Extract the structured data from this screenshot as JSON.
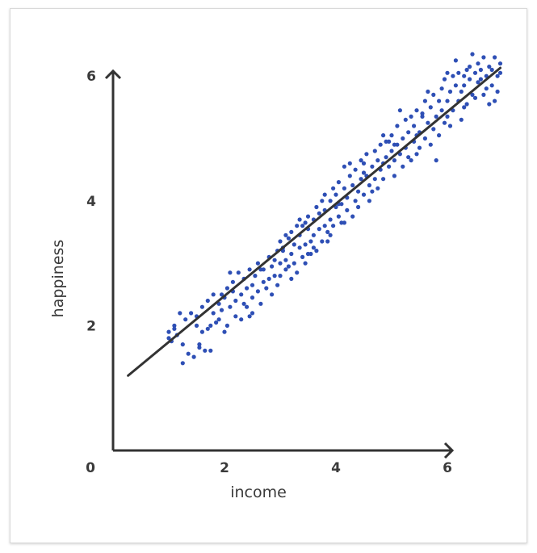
{
  "chart_data": {
    "type": "scatter",
    "title": "",
    "xlabel": "income",
    "ylabel": "happiness",
    "xlim": [
      0,
      7.3
    ],
    "ylim": [
      0,
      6.4
    ],
    "origin_label": "0",
    "x_ticks": [
      {
        "value": 2,
        "label": "2"
      },
      {
        "value": 4,
        "label": "4"
      },
      {
        "value": 6,
        "label": "6"
      }
    ],
    "y_ticks": [
      {
        "value": 2,
        "label": "2"
      },
      {
        "value": 4,
        "label": "4"
      },
      {
        "value": 6,
        "label": "6"
      }
    ],
    "grid": false,
    "trend_line": {
      "x": [
        0.27,
        6.95
      ],
      "y": [
        1.2,
        6.13
      ]
    },
    "point_color": "#2e4fb5",
    "line_color": "#333333",
    "axis_color": "#333333",
    "points": [
      [
        1.0,
        1.8
      ],
      [
        1.0,
        1.9
      ],
      [
        1.05,
        1.75
      ],
      [
        1.1,
        2.0
      ],
      [
        1.1,
        1.95
      ],
      [
        1.2,
        2.2
      ],
      [
        1.25,
        1.4
      ],
      [
        1.3,
        2.1
      ],
      [
        1.35,
        1.55
      ],
      [
        1.4,
        2.2
      ],
      [
        1.45,
        1.5
      ],
      [
        1.5,
        2.0
      ],
      [
        1.55,
        1.7
      ],
      [
        1.55,
        1.65
      ],
      [
        1.6,
        2.3
      ],
      [
        1.6,
        1.9
      ],
      [
        1.65,
        1.6
      ],
      [
        1.7,
        2.4
      ],
      [
        1.7,
        1.95
      ],
      [
        1.75,
        1.6
      ],
      [
        1.8,
        2.5
      ],
      [
        1.8,
        2.2
      ],
      [
        1.85,
        2.05
      ],
      [
        1.9,
        2.1
      ],
      [
        1.95,
        2.5
      ],
      [
        1.95,
        2.25
      ],
      [
        2.0,
        2.45
      ],
      [
        2.0,
        1.9
      ],
      [
        2.05,
        2.6
      ],
      [
        2.05,
        2.0
      ],
      [
        2.1,
        2.3
      ],
      [
        2.15,
        2.7
      ],
      [
        2.2,
        2.15
      ],
      [
        2.2,
        2.4
      ],
      [
        2.25,
        2.85
      ],
      [
        2.3,
        2.5
      ],
      [
        2.3,
        2.1
      ],
      [
        2.35,
        2.75
      ],
      [
        2.4,
        2.3
      ],
      [
        2.4,
        2.6
      ],
      [
        2.45,
        2.9
      ],
      [
        2.5,
        2.45
      ],
      [
        2.5,
        2.2
      ],
      [
        2.55,
        2.8
      ],
      [
        2.6,
        2.55
      ],
      [
        2.6,
        3.0
      ],
      [
        2.65,
        2.35
      ],
      [
        2.7,
        2.7
      ],
      [
        2.7,
        2.9
      ],
      [
        2.75,
        2.6
      ],
      [
        2.8,
        3.1
      ],
      [
        2.8,
        2.75
      ],
      [
        2.85,
        2.5
      ],
      [
        2.9,
        3.05
      ],
      [
        2.9,
        2.8
      ],
      [
        2.95,
        3.2
      ],
      [
        2.95,
        2.65
      ],
      [
        3.0,
        3.0
      ],
      [
        3.0,
        2.8
      ],
      [
        3.05,
        3.2
      ],
      [
        3.05,
        3.25
      ],
      [
        3.1,
        2.9
      ],
      [
        3.1,
        3.05
      ],
      [
        3.15,
        3.4
      ],
      [
        3.15,
        2.95
      ],
      [
        3.2,
        3.15
      ],
      [
        3.2,
        3.5
      ],
      [
        3.25,
        3.0
      ],
      [
        3.25,
        3.3
      ],
      [
        3.3,
        3.6
      ],
      [
        3.3,
        2.85
      ],
      [
        3.35,
        3.25
      ],
      [
        3.35,
        3.45
      ],
      [
        3.4,
        3.1
      ],
      [
        3.4,
        3.6
      ],
      [
        3.45,
        3.3
      ],
      [
        3.45,
        3.0
      ],
      [
        3.5,
        3.55
      ],
      [
        3.5,
        3.75
      ],
      [
        3.55,
        3.35
      ],
      [
        3.55,
        3.15
      ],
      [
        3.6,
        3.7
      ],
      [
        3.6,
        3.45
      ],
      [
        3.65,
        3.9
      ],
      [
        3.65,
        3.2
      ],
      [
        3.7,
        3.55
      ],
      [
        3.7,
        3.8
      ],
      [
        3.75,
        3.35
      ],
      [
        3.75,
        4.0
      ],
      [
        3.8,
        3.6
      ],
      [
        3.8,
        3.85
      ],
      [
        3.85,
        3.5
      ],
      [
        3.85,
        3.35
      ],
      [
        3.9,
        4.0
      ],
      [
        3.9,
        3.7
      ],
      [
        3.95,
        4.2
      ],
      [
        3.95,
        3.6
      ],
      [
        4.0,
        3.9
      ],
      [
        4.0,
        4.1
      ],
      [
        4.05,
        3.75
      ],
      [
        4.05,
        4.3
      ],
      [
        4.1,
        3.95
      ],
      [
        4.1,
        3.65
      ],
      [
        4.15,
        4.55
      ],
      [
        4.15,
        4.2
      ],
      [
        4.2,
        3.85
      ],
      [
        4.2,
        4.05
      ],
      [
        4.25,
        4.4
      ],
      [
        4.3,
        3.75
      ],
      [
        4.3,
        4.25
      ],
      [
        4.35,
        4.0
      ],
      [
        4.35,
        4.5
      ],
      [
        4.4,
        4.15
      ],
      [
        4.4,
        3.9
      ],
      [
        4.45,
        4.35
      ],
      [
        4.5,
        4.6
      ],
      [
        4.5,
        4.1
      ],
      [
        4.55,
        4.4
      ],
      [
        4.55,
        4.75
      ],
      [
        4.6,
        4.25
      ],
      [
        4.6,
        4.0
      ],
      [
        4.65,
        4.55
      ],
      [
        4.7,
        4.8
      ],
      [
        4.7,
        4.35
      ],
      [
        4.75,
        4.65
      ],
      [
        4.75,
        4.2
      ],
      [
        4.8,
        4.9
      ],
      [
        4.8,
        4.5
      ],
      [
        4.85,
        5.05
      ],
      [
        4.85,
        4.35
      ],
      [
        4.9,
        4.7
      ],
      [
        4.95,
        4.95
      ],
      [
        4.95,
        4.55
      ],
      [
        5.0,
        4.8
      ],
      [
        5.0,
        5.05
      ],
      [
        5.05,
        4.4
      ],
      [
        5.05,
        4.65
      ],
      [
        5.1,
        4.9
      ],
      [
        5.1,
        5.2
      ],
      [
        5.15,
        4.75
      ],
      [
        5.2,
        5.0
      ],
      [
        5.2,
        4.55
      ],
      [
        5.25,
        5.3
      ],
      [
        5.25,
        4.85
      ],
      [
        5.3,
        5.1
      ],
      [
        5.3,
        4.7
      ],
      [
        5.35,
        5.35
      ],
      [
        5.4,
        4.95
      ],
      [
        5.4,
        5.2
      ],
      [
        5.45,
        4.75
      ],
      [
        5.45,
        5.45
      ],
      [
        5.5,
        5.1
      ],
      [
        5.5,
        4.85
      ],
      [
        5.55,
        5.35
      ],
      [
        5.6,
        5.0
      ],
      [
        5.6,
        5.6
      ],
      [
        5.65,
        5.25
      ],
      [
        5.7,
        4.9
      ],
      [
        5.7,
        5.5
      ],
      [
        5.75,
        5.15
      ],
      [
        5.75,
        5.7
      ],
      [
        5.8,
        5.35
      ],
      [
        5.8,
        4.65
      ],
      [
        5.85,
        5.6
      ],
      [
        5.85,
        5.05
      ],
      [
        5.9,
        5.8
      ],
      [
        5.9,
        5.45
      ],
      [
        5.95,
        5.25
      ],
      [
        6.0,
        6.05
      ],
      [
        6.0,
        5.6
      ],
      [
        6.05,
        5.75
      ],
      [
        6.05,
        5.2
      ],
      [
        6.1,
        6.0
      ],
      [
        6.1,
        5.45
      ],
      [
        6.15,
        5.85
      ],
      [
        6.2,
        5.6
      ],
      [
        6.2,
        6.05
      ],
      [
        6.25,
        5.3
      ],
      [
        6.25,
        5.75
      ],
      [
        6.3,
        6.0
      ],
      [
        6.3,
        5.85
      ],
      [
        6.35,
        5.55
      ],
      [
        6.35,
        6.1
      ],
      [
        6.4,
        5.95
      ],
      [
        6.45,
        5.7
      ],
      [
        6.45,
        6.35
      ],
      [
        6.5,
        6.05
      ],
      [
        6.5,
        5.65
      ],
      [
        6.55,
        6.2
      ],
      [
        6.55,
        5.9
      ],
      [
        6.6,
        6.1
      ],
      [
        6.65,
        5.7
      ],
      [
        6.65,
        6.3
      ],
      [
        6.7,
        6.0
      ],
      [
        6.7,
        5.8
      ],
      [
        6.75,
        6.15
      ],
      [
        6.8,
        5.85
      ],
      [
        6.8,
        6.1
      ],
      [
        6.85,
        5.6
      ],
      [
        6.9,
        6.0
      ],
      [
        6.9,
        5.75
      ],
      [
        6.95,
        6.2
      ],
      [
        6.95,
        6.05
      ],
      [
        1.15,
        1.85
      ],
      [
        1.5,
        2.15
      ],
      [
        1.75,
        2.0
      ],
      [
        2.15,
        2.55
      ],
      [
        2.5,
        2.65
      ],
      [
        2.85,
        2.95
      ],
      [
        3.0,
        3.35
      ],
      [
        3.35,
        3.7
      ],
      [
        3.6,
        3.25
      ],
      [
        3.9,
        3.45
      ],
      [
        4.25,
        4.6
      ],
      [
        4.5,
        4.45
      ],
      [
        4.9,
        4.95
      ],
      [
        5.15,
        5.45
      ],
      [
        5.55,
        5.4
      ],
      [
        5.95,
        5.95
      ],
      [
        6.3,
        5.5
      ],
      [
        6.6,
        5.95
      ],
      [
        6.85,
        6.3
      ],
      [
        1.25,
        1.7
      ],
      [
        1.9,
        2.35
      ],
      [
        2.35,
        2.35
      ],
      [
        2.65,
        2.9
      ],
      [
        3.1,
        3.45
      ],
      [
        3.5,
        3.15
      ],
      [
        3.8,
        4.1
      ],
      [
        4.05,
        3.95
      ],
      [
        4.45,
        4.65
      ],
      [
        4.65,
        4.15
      ],
      [
        5.05,
        4.9
      ],
      [
        5.35,
        4.65
      ],
      [
        5.65,
        5.75
      ],
      [
        6.0,
        5.35
      ],
      [
        6.4,
        6.15
      ],
      [
        6.75,
        5.55
      ],
      [
        2.1,
        2.85
      ],
      [
        2.45,
        2.15
      ],
      [
        3.2,
        2.75
      ],
      [
        3.45,
        3.65
      ],
      [
        4.15,
        3.65
      ],
      [
        4.85,
        4.6
      ],
      [
        5.45,
        5.05
      ],
      [
        6.15,
        6.25
      ]
    ]
  }
}
